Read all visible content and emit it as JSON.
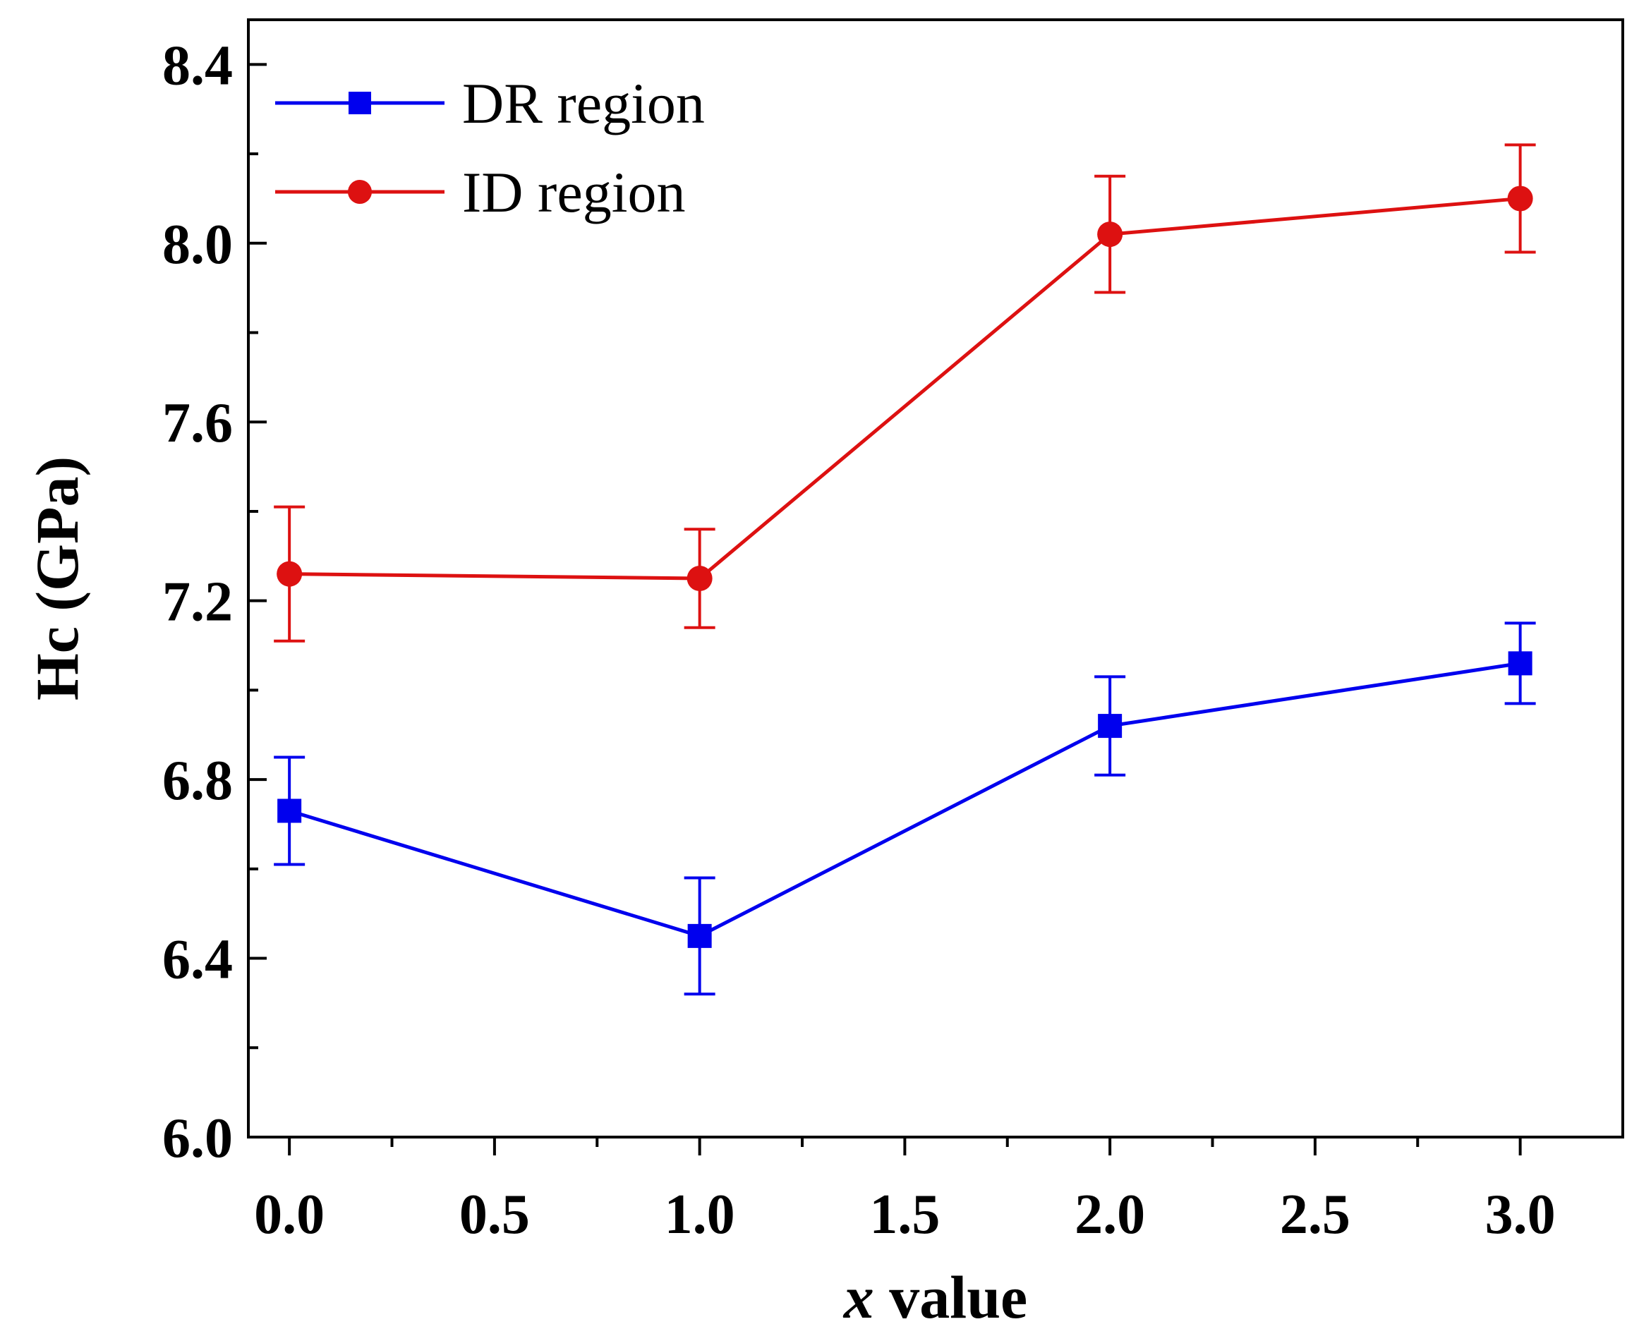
{
  "chart_data": {
    "type": "line",
    "title": "",
    "xlabel_italic": "x",
    "xlabel_rest": " value",
    "ylabel": "Hc (GPa)",
    "xlim": [
      -0.1,
      3.25
    ],
    "ylim": [
      6.0,
      8.5
    ],
    "xticks": [
      0.0,
      0.5,
      1.0,
      1.5,
      2.0,
      2.5,
      3.0
    ],
    "xtick_labels": [
      "0.0",
      "0.5",
      "1.0",
      "1.5",
      "2.0",
      "2.5",
      "3.0"
    ],
    "yticks": [
      6.0,
      6.4,
      6.8,
      7.2,
      7.6,
      8.0,
      8.4
    ],
    "ytick_labels": [
      "6.0",
      "6.4",
      "6.8",
      "7.2",
      "7.6",
      "8.0",
      "8.4"
    ],
    "grid": false,
    "legend_position": "top-left",
    "series": [
      {
        "name": "DR region",
        "color": "#0000ee",
        "marker": "square",
        "x": [
          0.0,
          1.0,
          2.0,
          3.0
        ],
        "y": [
          6.73,
          6.45,
          6.92,
          7.06
        ],
        "err": [
          0.12,
          0.13,
          0.11,
          0.09
        ]
      },
      {
        "name": "ID region",
        "color": "#dd1111",
        "marker": "circle",
        "x": [
          0.0,
          1.0,
          2.0,
          3.0
        ],
        "y": [
          7.26,
          7.25,
          8.02,
          8.1
        ],
        "err": [
          0.15,
          0.11,
          0.13,
          0.12
        ]
      }
    ]
  }
}
